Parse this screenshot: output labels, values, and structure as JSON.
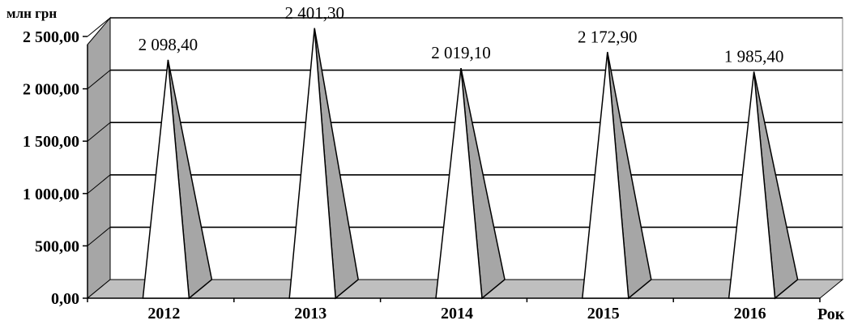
{
  "chart_data": {
    "type": "bar",
    "ylabel": "млн грн",
    "xlabel": "Рок",
    "categories": [
      "2012",
      "2013",
      "2014",
      "2015",
      "2016"
    ],
    "values": [
      2098.4,
      2401.3,
      2019.1,
      2172.9,
      1985.4
    ],
    "value_labels": [
      "2 098,40",
      "2 401,30",
      "2 019,10",
      "2 172,90",
      "1 985,40"
    ],
    "ylim": [
      0,
      2500
    ],
    "yticks": [
      0,
      500,
      1000,
      1500,
      2000,
      2500
    ],
    "ytick_labels": [
      "0,00",
      "500,00",
      "1 000,00",
      "1 500,00",
      "2 000,00",
      "2 500,00"
    ],
    "grid": true,
    "style": "3d-cone",
    "colors": {
      "face": "#ffffff",
      "side": "#a6a6a6",
      "wall": "#a6a6a6",
      "floor": "#bfbfbf",
      "outline": "#000000"
    }
  }
}
